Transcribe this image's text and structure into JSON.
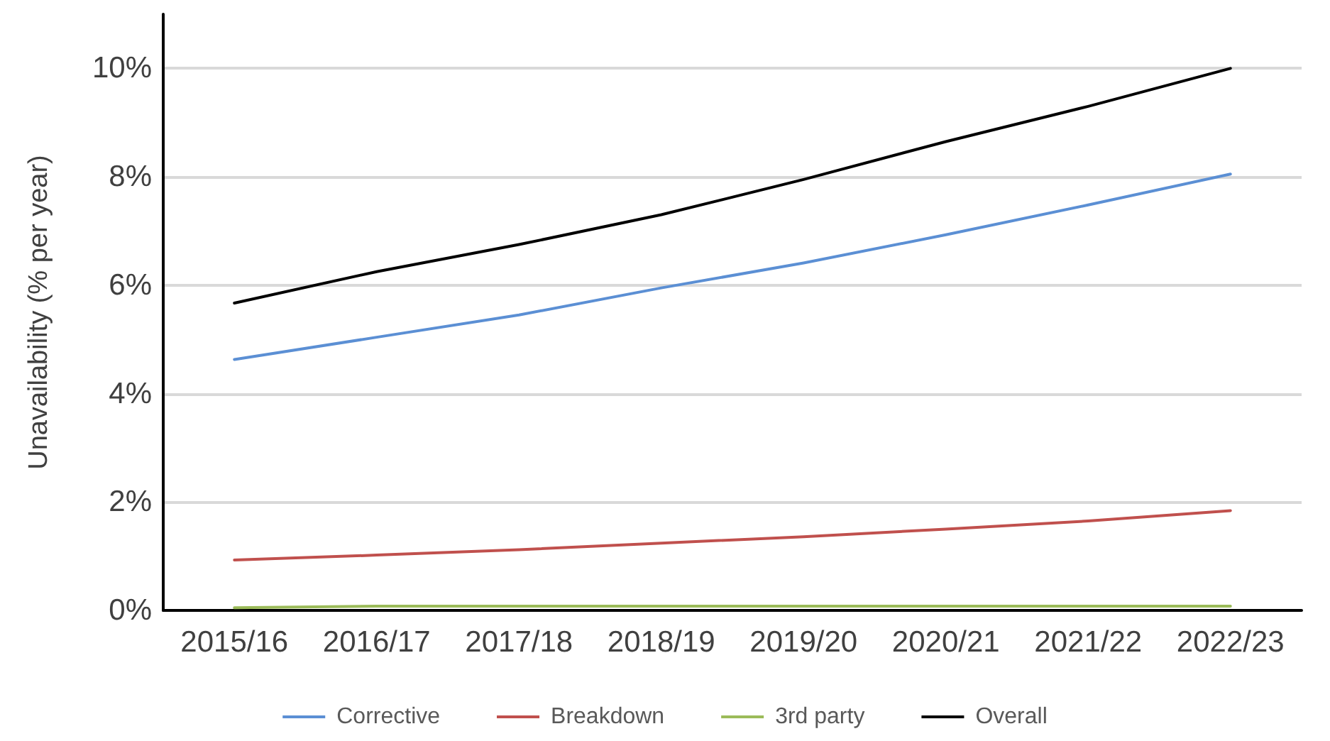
{
  "chart_data": {
    "type": "line",
    "ylabel": "Unavailability (% per year)",
    "categories": [
      "2015/16",
      "2016/17",
      "2017/18",
      "2018/19",
      "2019/20",
      "2020/21",
      "2021/22",
      "2022/23"
    ],
    "series": [
      {
        "name": "Corrective",
        "color": "#5b8fd4",
        "values": [
          4.63,
          5.04,
          5.45,
          5.95,
          6.41,
          6.93,
          7.48,
          8.05
        ]
      },
      {
        "name": "Breakdown",
        "color": "#c0504d",
        "values": [
          0.93,
          1.02,
          1.12,
          1.24,
          1.36,
          1.5,
          1.65,
          1.84
        ]
      },
      {
        "name": "3rd party",
        "color": "#9bbb59",
        "values": [
          0.05,
          0.08,
          0.08,
          0.08,
          0.08,
          0.08,
          0.08,
          0.08
        ]
      },
      {
        "name": "Overall",
        "color": "#000000",
        "values": [
          5.67,
          6.25,
          6.75,
          7.3,
          7.95,
          8.65,
          9.3,
          10.0
        ]
      }
    ],
    "ylim": [
      0,
      11
    ],
    "yticks": [
      {
        "value": 0,
        "label": "0%"
      },
      {
        "value": 2,
        "label": "2%"
      },
      {
        "value": 4,
        "label": "4%"
      },
      {
        "value": 6,
        "label": "6%"
      },
      {
        "value": 8,
        "label": "8%"
      },
      {
        "value": 10,
        "label": "10%"
      }
    ],
    "grid": "y",
    "legend": "bottom",
    "marker": "none",
    "line_style": "solid"
  }
}
